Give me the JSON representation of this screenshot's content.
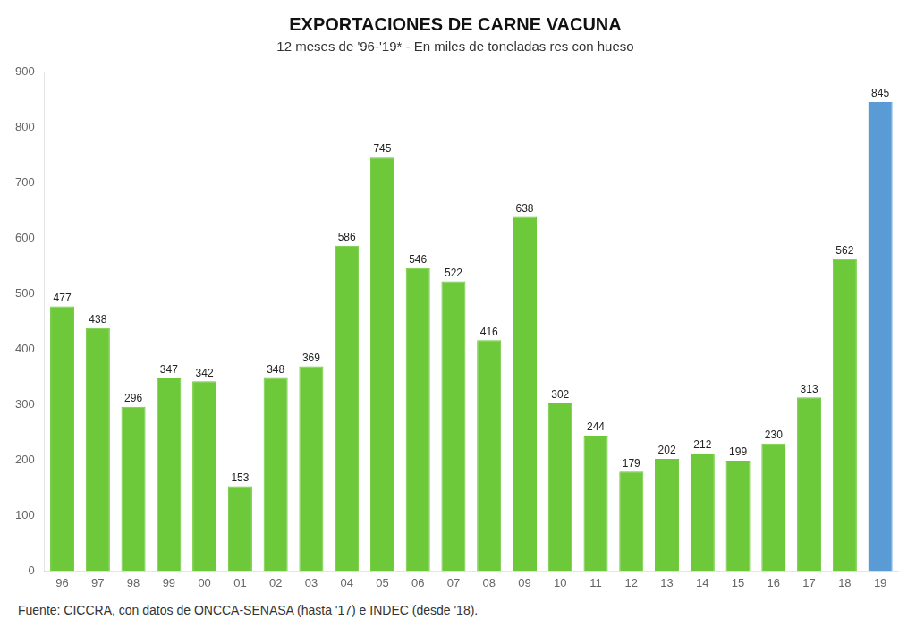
{
  "chart_data": {
    "type": "bar",
    "title": "EXPORTACIONES DE CARNE VACUNA",
    "subtitle": "12 meses de '96-'19* - En miles de toneladas res con hueso",
    "categories": [
      "96",
      "97",
      "98",
      "99",
      "00",
      "01",
      "02",
      "03",
      "04",
      "05",
      "06",
      "07",
      "08",
      "09",
      "10",
      "11",
      "12",
      "13",
      "14",
      "15",
      "16",
      "17",
      "18",
      "19"
    ],
    "values": [
      477,
      438,
      296,
      347,
      342,
      153,
      348,
      369,
      586,
      745,
      546,
      522,
      416,
      638,
      302,
      244,
      179,
      202,
      212,
      199,
      230,
      313,
      562,
      845
    ],
    "colors": [
      "#6dc93a",
      "#6dc93a",
      "#6dc93a",
      "#6dc93a",
      "#6dc93a",
      "#6dc93a",
      "#6dc93a",
      "#6dc93a",
      "#6dc93a",
      "#6dc93a",
      "#6dc93a",
      "#6dc93a",
      "#6dc93a",
      "#6dc93a",
      "#6dc93a",
      "#6dc93a",
      "#6dc93a",
      "#6dc93a",
      "#6dc93a",
      "#6dc93a",
      "#6dc93a",
      "#6dc93a",
      "#6dc93a",
      "#5b9bd5"
    ],
    "ylim": [
      0,
      900
    ],
    "yticks": [
      0,
      100,
      200,
      300,
      400,
      500,
      600,
      700,
      800,
      900
    ],
    "grid": false,
    "data_labels": true,
    "footer": "Fuente: CICCRA, con datos de ONCCA-SENASA (hasta '17) e INDEC (desde '18)."
  }
}
